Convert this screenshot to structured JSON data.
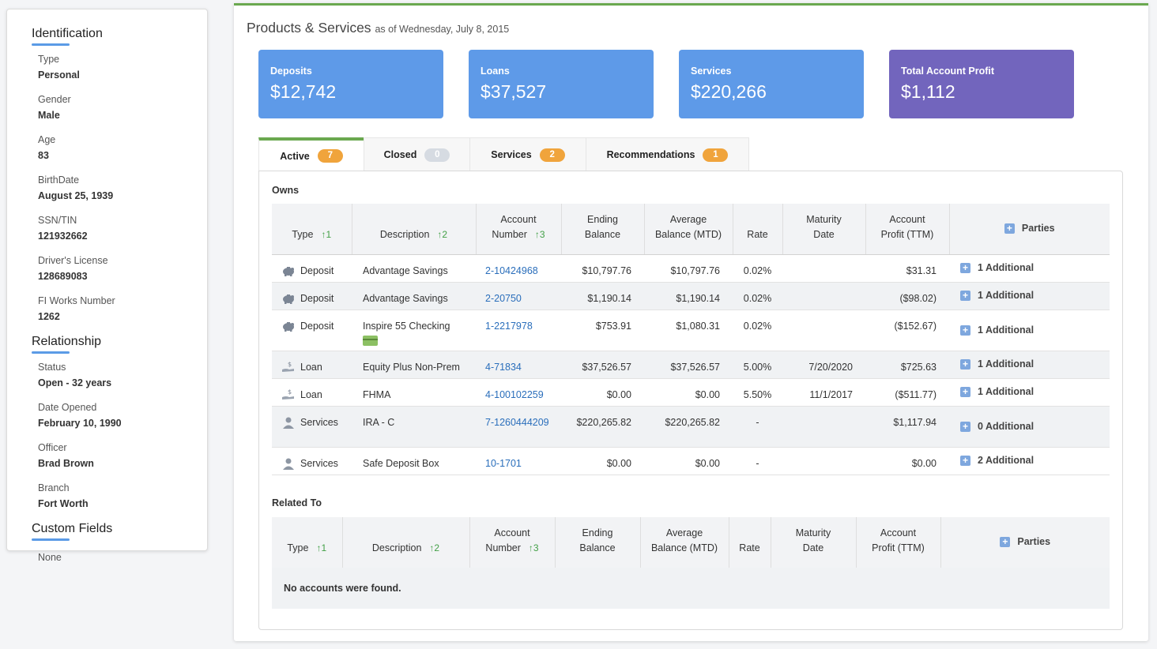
{
  "sidebar": {
    "identification": {
      "title": "Identification",
      "fields": [
        {
          "label": "Type",
          "value": "Personal"
        },
        {
          "label": "Gender",
          "value": "Male"
        },
        {
          "label": "Age",
          "value": "83"
        },
        {
          "label": "BirthDate",
          "value": "August 25, 1939"
        },
        {
          "label": "SSN/TIN",
          "value": "121932662"
        },
        {
          "label": "Driver's License",
          "value": "128689083"
        },
        {
          "label": "FI Works Number",
          "value": "1262"
        }
      ]
    },
    "relationship": {
      "title": "Relationship",
      "fields": [
        {
          "label": "Status",
          "value": "Open - 32 years"
        },
        {
          "label": "Date Opened",
          "value": "February 10, 1990"
        },
        {
          "label": "Officer",
          "value": "Brad Brown"
        },
        {
          "label": "Branch",
          "value": "Fort Worth"
        }
      ]
    },
    "custom": {
      "title": "Custom Fields",
      "value": "None"
    }
  },
  "main": {
    "title": "Products & Services",
    "as_of": "as of Wednesday, July 8, 2015",
    "cards": [
      {
        "label": "Deposits",
        "value": "$12,742",
        "color": "#5e9ae8"
      },
      {
        "label": "Loans",
        "value": "$37,527",
        "color": "#5e9ae8"
      },
      {
        "label": "Services",
        "value": "$220,266",
        "color": "#5e9ae8"
      },
      {
        "label": "Total Account Profit",
        "value": "$1,112",
        "color": "#7265bd"
      }
    ],
    "tabs": [
      {
        "label": "Active",
        "count": "7"
      },
      {
        "label": "Closed",
        "count": "0"
      },
      {
        "label": "Services",
        "count": "2"
      },
      {
        "label": "Recommendations",
        "count": "1"
      }
    ],
    "owns_label": "Owns",
    "related_label": "Related To",
    "columns": {
      "type": "Type",
      "type_sort": "1",
      "description": "Description",
      "description_sort": "2",
      "account_number_1": "Account",
      "account_number_2": "Number",
      "account_sort": "3",
      "ending_1": "Ending",
      "ending_2": "Balance",
      "average_1": "Average",
      "average_2": "Balance (MTD)",
      "rate": "Rate",
      "maturity_1": "Maturity",
      "maturity_2": "Date",
      "profit_1": "Account",
      "profit_2": "Profit (TTM)",
      "parties": "Parties"
    },
    "rows": [
      {
        "icon": "piggy-bank-icon",
        "type": "Deposit",
        "description": "Advantage Savings",
        "account": "2-10424968",
        "ending": "$10,797.76",
        "average": "$10,797.76",
        "rate": "0.02%",
        "maturity": "",
        "profit": "$31.31",
        "parties": "1 Additional"
      },
      {
        "icon": "piggy-bank-icon",
        "type": "Deposit",
        "description": "Advantage Savings",
        "account": "2-20750",
        "ending": "$1,190.14",
        "average": "$1,190.14",
        "rate": "0.02%",
        "maturity": "",
        "profit": "($98.02)",
        "parties": "1 Additional"
      },
      {
        "icon": "piggy-bank-icon",
        "type": "Deposit",
        "description": "Inspire 55 Checking",
        "account": "1-2217978",
        "ending": "$753.91",
        "average": "$1,080.31",
        "rate": "0.02%",
        "maturity": "",
        "profit": "($152.67)",
        "parties": "1 Additional",
        "has_card": true
      },
      {
        "icon": "loan-hand-icon",
        "type": "Loan",
        "description": "Equity Plus Non-Prem",
        "account": "4-71834",
        "ending": "$37,526.57",
        "average": "$37,526.57",
        "rate": "5.00%",
        "maturity": "7/20/2020",
        "profit": "$725.63",
        "parties": "1 Additional"
      },
      {
        "icon": "loan-hand-icon",
        "type": "Loan",
        "description": "FHMA",
        "account": "4-100102259",
        "ending": "$0.00",
        "average": "$0.00",
        "rate": "5.50%",
        "maturity": "11/1/2017",
        "profit": "($511.77)",
        "parties": "1 Additional"
      },
      {
        "icon": "person-icon",
        "type": "Services",
        "description": "IRA - C",
        "account": "7-1260444209",
        "ending": "$220,265.82",
        "average": "$220,265.82",
        "rate": "-",
        "maturity": "",
        "profit": "$1,117.94",
        "parties": "0 Additional"
      },
      {
        "icon": "person-icon",
        "type": "Services",
        "description": "Safe Deposit Box",
        "account": "10-1701",
        "ending": "$0.00",
        "average": "$0.00",
        "rate": "-",
        "maturity": "",
        "profit": "$0.00",
        "parties": "2 Additional"
      }
    ],
    "empty_message": "No accounts were found."
  }
}
